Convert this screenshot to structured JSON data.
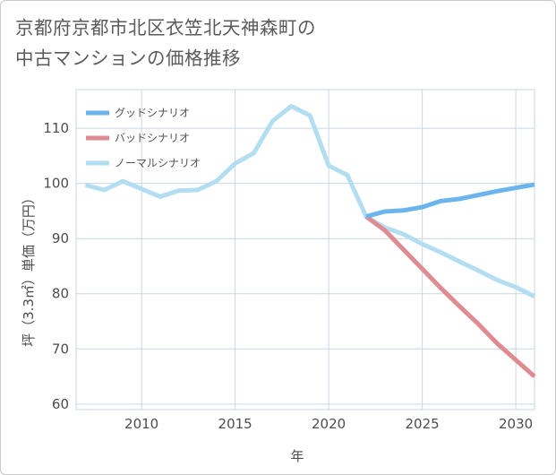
{
  "chart_data": {
    "type": "line",
    "title_lines": [
      "京都府京都市北区衣笠北天神森町の",
      "中古マンションの価格推移"
    ],
    "xlabel": "年",
    "ylabel": "坪（3.3㎡）単価（万円）",
    "xlim": [
      2006.5,
      2031
    ],
    "ylim": [
      59,
      117
    ],
    "xticks": [
      2010,
      2015,
      2020,
      2025,
      2030
    ],
    "yticks": [
      60,
      70,
      80,
      90,
      100,
      110
    ],
    "grid": true,
    "legend_position": "top-left",
    "series": [
      {
        "name": "グッドシナリオ",
        "color": "#6cb4ec",
        "x": [
          2022,
          2023,
          2024,
          2025,
          2026,
          2027,
          2028,
          2029,
          2030,
          2031
        ],
        "y": [
          94.0,
          94.9,
          95.1,
          95.7,
          96.8,
          97.2,
          97.9,
          98.6,
          99.2,
          99.8
        ]
      },
      {
        "name": "バッドシナリオ",
        "color": "#de8c92",
        "x": [
          2022,
          2023,
          2024,
          2025,
          2026,
          2027,
          2028,
          2029,
          2030,
          2031
        ],
        "y": [
          94.0,
          91.5,
          88.0,
          84.5,
          81.0,
          77.7,
          74.5,
          71.0,
          68.0,
          65.0
        ]
      },
      {
        "name": "ノーマルシナリオ",
        "color": "#b3def2",
        "x": [
          2007,
          2008,
          2009,
          2010,
          2011,
          2012,
          2013,
          2014,
          2015,
          2016,
          2017,
          2018,
          2019,
          2020,
          2021,
          2022,
          2023,
          2024,
          2025,
          2026,
          2027,
          2028,
          2029,
          2030,
          2031
        ],
        "y": [
          99.7,
          98.8,
          100.4,
          99.0,
          97.6,
          98.7,
          98.8,
          100.4,
          103.6,
          105.5,
          111.3,
          114.0,
          112.3,
          103.2,
          101.5,
          94.0,
          92.0,
          90.8,
          89.0,
          87.5,
          85.8,
          84.2,
          82.5,
          81.2,
          79.5
        ]
      }
    ]
  }
}
